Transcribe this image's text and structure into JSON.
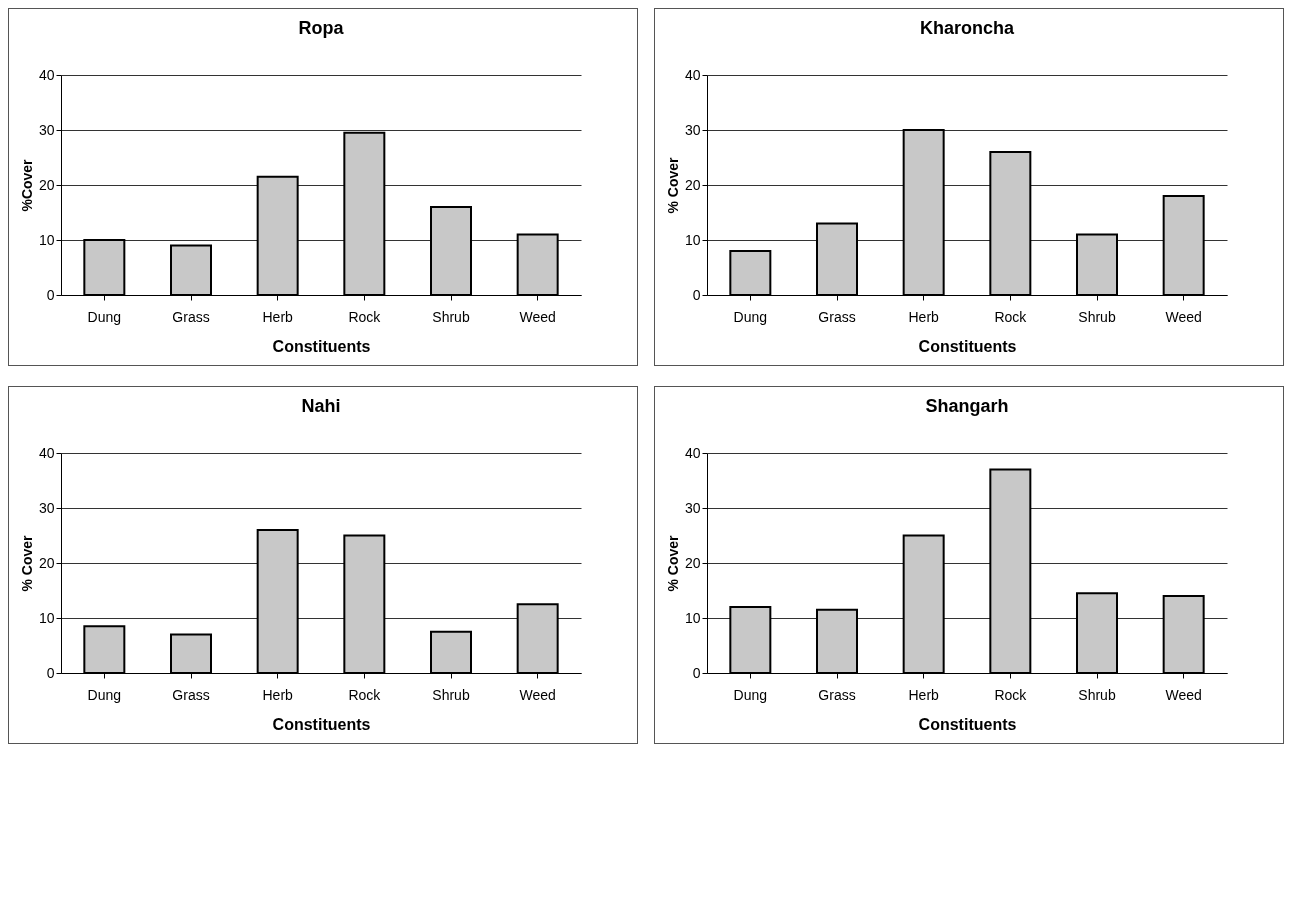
{
  "chart_data": [
    {
      "type": "bar",
      "title": "Ropa",
      "xlabel": "Constituents",
      "ylabel": "%Cover",
      "categories": [
        "Dung",
        "Grass",
        "Herb",
        "Rock",
        "Shrub",
        "Weed"
      ],
      "values": [
        10,
        9,
        21.5,
        29.5,
        16,
        11
      ],
      "color": "#c8c8c8",
      "ylim": [
        0,
        40
      ],
      "yticks": [
        0,
        10,
        20,
        30,
        40
      ],
      "grid": "y"
    },
    {
      "type": "bar",
      "title": "Kharoncha",
      "xlabel": "Constituents",
      "ylabel": "% Cover",
      "categories": [
        "Dung",
        "Grass",
        "Herb",
        "Rock",
        "Shrub",
        "Weed"
      ],
      "values": [
        8,
        13,
        30,
        26,
        11,
        18
      ],
      "color": "#c8c8c8",
      "ylim": [
        0,
        40
      ],
      "yticks": [
        0,
        10,
        20,
        30,
        40
      ],
      "grid": "y"
    },
    {
      "type": "bar",
      "title": "Nahi",
      "xlabel": "Constituents",
      "ylabel": "% Cover",
      "categories": [
        "Dung",
        "Grass",
        "Herb",
        "Rock",
        "Shrub",
        "Weed"
      ],
      "values": [
        8.5,
        7,
        26,
        25,
        7.5,
        12.5
      ],
      "color": "#c8c8c8",
      "ylim": [
        0,
        40
      ],
      "yticks": [
        0,
        10,
        20,
        30,
        40
      ],
      "grid": "y"
    },
    {
      "type": "bar",
      "title": "Shangarh",
      "xlabel": "Constituents",
      "ylabel": "% Cover",
      "categories": [
        "Dung",
        "Grass",
        "Herb",
        "Rock",
        "Shrub",
        "Weed"
      ],
      "values": [
        12,
        11.5,
        25,
        37,
        14.5,
        14
      ],
      "color": "#c8c8c8",
      "ylim": [
        0,
        40
      ],
      "yticks": [
        0,
        10,
        20,
        30,
        40
      ],
      "grid": "y"
    }
  ]
}
